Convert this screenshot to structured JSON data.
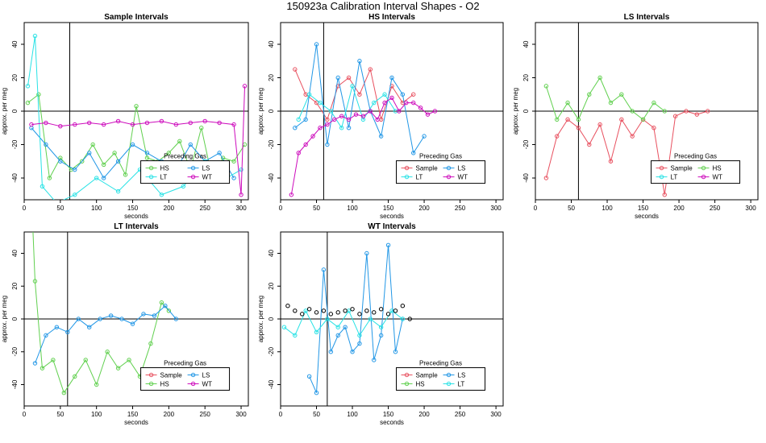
{
  "figure_title": "150923a   Calibration Interval Shapes - O2",
  "x_axis_label": "seconds",
  "y_axis_label": "approx. per meg",
  "legend_title": "Preceding Gas",
  "colors": {
    "Sample": "#e8505f",
    "HS": "#61d04f",
    "LS": "#2297e6",
    "LT": "#28e2e5",
    "WT": "#cd0bbc",
    "WT_points": "#000000"
  },
  "chart_data": [
    {
      "type": "scatter",
      "title": "Sample Intervals",
      "xlim": [
        0,
        310
      ],
      "ylim": [
        -53,
        53
      ],
      "xticks": [
        0,
        50,
        100,
        150,
        200,
        250,
        300
      ],
      "yticks": [
        -40,
        -20,
        0,
        20,
        40
      ],
      "vline": 63,
      "hline": 0,
      "legend": [
        "HS",
        "LS",
        "LT",
        "WT"
      ],
      "series": [
        {
          "name": "HS",
          "x": [
            5,
            20,
            35,
            50,
            65,
            80,
            95,
            110,
            125,
            140,
            155,
            170,
            185,
            200,
            215,
            230,
            245,
            260,
            275,
            290,
            305
          ],
          "y": [
            5,
            10,
            -40,
            -28,
            -35,
            -30,
            -20,
            -32,
            -25,
            -38,
            3,
            -28,
            -30,
            -25,
            -18,
            -35,
            -10,
            -40,
            -28,
            -30,
            -20
          ]
        },
        {
          "name": "LS",
          "x": [
            10,
            30,
            50,
            70,
            90,
            110,
            130,
            150,
            170,
            190,
            210,
            230,
            250,
            270,
            290
          ],
          "y": [
            -10,
            -20,
            -30,
            -35,
            -25,
            -40,
            -30,
            -20,
            -25,
            -30,
            -35,
            -20,
            -30,
            -25,
            -40
          ]
        },
        {
          "name": "LT",
          "x": [
            5,
            15,
            25,
            45,
            70,
            100,
            130,
            160,
            190,
            220,
            250,
            280,
            300
          ],
          "y": [
            15,
            45,
            -45,
            -55,
            -50,
            -40,
            -48,
            -35,
            -50,
            -45,
            -30,
            -40,
            -35
          ]
        },
        {
          "name": "WT",
          "x": [
            10,
            30,
            50,
            70,
            90,
            110,
            130,
            150,
            170,
            190,
            210,
            230,
            250,
            270,
            290,
            300,
            305
          ],
          "y": [
            -8,
            -7,
            -9,
            -8,
            -7,
            -8,
            -6,
            -8,
            -7,
            -6,
            -8,
            -7,
            -6,
            -7,
            -8,
            -50,
            15
          ]
        }
      ]
    },
    {
      "type": "scatter",
      "title": "HS Intervals",
      "xlim": [
        0,
        310
      ],
      "ylim": [
        -53,
        53
      ],
      "xticks": [
        0,
        50,
        100,
        150,
        200,
        250,
        300
      ],
      "yticks": [
        -40,
        -20,
        0,
        20,
        40
      ],
      "vline": 60,
      "hline": 0,
      "legend": [
        "Sample",
        "LS",
        "LT",
        "WT"
      ],
      "series": [
        {
          "name": "Sample",
          "x": [
            20,
            35,
            50,
            65,
            80,
            95,
            110,
            125,
            140,
            155,
            170,
            185
          ],
          "y": [
            25,
            10,
            5,
            -5,
            15,
            20,
            10,
            25,
            -5,
            15,
            5,
            10
          ]
        },
        {
          "name": "LS",
          "x": [
            20,
            35,
            50,
            65,
            80,
            95,
            110,
            125,
            140,
            155,
            170,
            185,
            200
          ],
          "y": [
            -10,
            -5,
            40,
            -20,
            20,
            -10,
            30,
            0,
            -15,
            20,
            10,
            -25,
            -15
          ]
        },
        {
          "name": "LT",
          "x": [
            25,
            40,
            55,
            70,
            85,
            100,
            115,
            130,
            145,
            160
          ],
          "y": [
            -5,
            10,
            5,
            0,
            -10,
            15,
            -5,
            5,
            10,
            0
          ]
        },
        {
          "name": "WT",
          "x": [
            15,
            25,
            35,
            45,
            55,
            65,
            75,
            85,
            95,
            105,
            115,
            125,
            135,
            145,
            155,
            165,
            175,
            185,
            195,
            205,
            215
          ],
          "y": [
            -50,
            -25,
            -20,
            -15,
            -10,
            -8,
            -5,
            -3,
            -5,
            -2,
            -3,
            0,
            -5,
            5,
            8,
            0,
            5,
            5,
            2,
            -2,
            0
          ]
        }
      ]
    },
    {
      "type": "scatter",
      "title": "LS Intervals",
      "xlim": [
        0,
        310
      ],
      "ylim": [
        -53,
        53
      ],
      "xticks": [
        0,
        50,
        100,
        150,
        200,
        250,
        300
      ],
      "yticks": [
        -40,
        -20,
        0,
        20,
        40
      ],
      "vline": 60,
      "hline": 0,
      "legend": [
        "Sample",
        "HS",
        "LT",
        "WT"
      ],
      "series": [
        {
          "name": "Sample",
          "x": [
            15,
            30,
            45,
            60,
            75,
            90,
            105,
            120,
            135,
            150,
            165,
            180,
            195,
            210,
            225,
            240
          ],
          "y": [
            -40,
            -15,
            -5,
            -10,
            -20,
            -8,
            -30,
            -5,
            -15,
            -5,
            -10,
            -50,
            -3,
            0,
            -2,
            0
          ]
        },
        {
          "name": "HS",
          "x": [
            15,
            30,
            45,
            60,
            75,
            90,
            105,
            120,
            135,
            150,
            165,
            180
          ],
          "y": [
            15,
            -5,
            5,
            -5,
            10,
            20,
            5,
            10,
            0,
            -5,
            5,
            0
          ]
        }
      ]
    },
    {
      "type": "scatter",
      "title": "LT Intervals",
      "xlim": [
        0,
        310
      ],
      "ylim": [
        -53,
        53
      ],
      "xticks": [
        0,
        50,
        100,
        150,
        200,
        250,
        300
      ],
      "yticks": [
        -40,
        -20,
        0,
        20,
        40
      ],
      "vline": 60,
      "hline": 0,
      "legend": [
        "Sample",
        "LS",
        "HS",
        "WT"
      ],
      "series": [
        {
          "name": "HS",
          "x": [
            12,
            15,
            25,
            40,
            55,
            70,
            85,
            100,
            115,
            130,
            145,
            160,
            175,
            190,
            200
          ],
          "y": [
            55,
            23,
            -30,
            -25,
            -45,
            -35,
            -25,
            -40,
            -20,
            -30,
            -25,
            -35,
            -15,
            10,
            5
          ]
        },
        {
          "name": "LS",
          "x": [
            15,
            30,
            45,
            60,
            75,
            90,
            105,
            120,
            135,
            150,
            165,
            180,
            195,
            210
          ],
          "y": [
            -27,
            -10,
            -5,
            -8,
            0,
            -5,
            0,
            2,
            0,
            -3,
            3,
            2,
            8,
            0
          ]
        }
      ]
    },
    {
      "type": "scatter",
      "title": "WT Intervals",
      "xlim": [
        0,
        310
      ],
      "ylim": [
        -53,
        53
      ],
      "xticks": [
        0,
        50,
        100,
        150,
        200,
        250,
        300
      ],
      "yticks": [
        -40,
        -20,
        0,
        20,
        40
      ],
      "vline": 65,
      "hline": 0,
      "legend": [
        "Sample",
        "LS",
        "HS",
        "LT"
      ],
      "series": [
        {
          "name": "LS",
          "x": [
            40,
            50,
            60,
            70,
            80,
            90,
            100,
            110,
            120,
            130,
            140,
            150,
            160,
            170
          ],
          "y": [
            -35,
            -45,
            30,
            -20,
            -10,
            -5,
            -20,
            -15,
            40,
            -25,
            -10,
            45,
            -20,
            0
          ]
        },
        {
          "name": "LT",
          "x": [
            5,
            20,
            35,
            50,
            65,
            80,
            95,
            110,
            125,
            140,
            155,
            170
          ],
          "y": [
            -5,
            -10,
            5,
            -8,
            0,
            -5,
            5,
            -10,
            0,
            -5,
            5,
            0
          ]
        },
        {
          "name": "WT_points",
          "x": [
            10,
            20,
            30,
            40,
            50,
            60,
            70,
            80,
            90,
            100,
            110,
            120,
            130,
            140,
            150,
            160,
            170,
            180
          ],
          "y": [
            8,
            5,
            3,
            6,
            4,
            5,
            3,
            4,
            5,
            6,
            3,
            5,
            4,
            6,
            3,
            5,
            8,
            0
          ]
        }
      ]
    }
  ]
}
